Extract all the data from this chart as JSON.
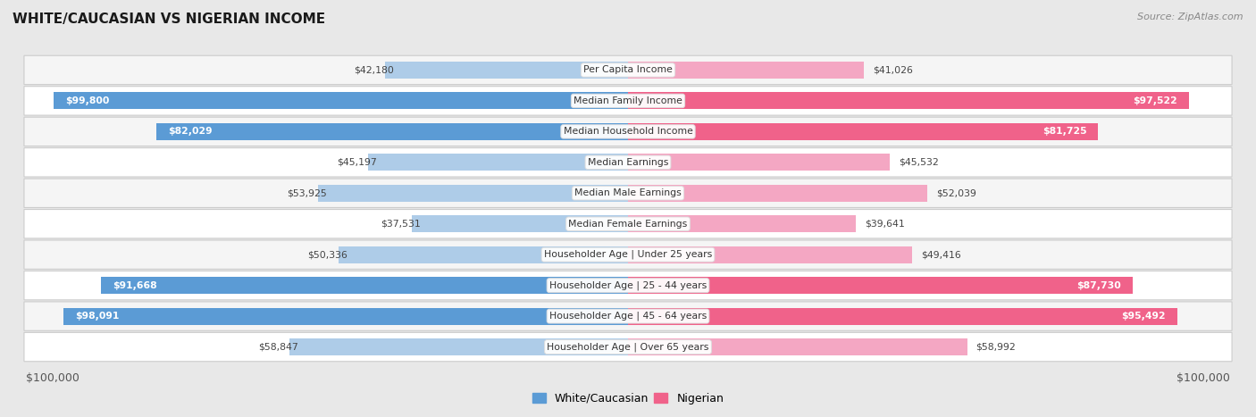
{
  "title": "WHITE/CAUCASIAN VS NIGERIAN INCOME",
  "source": "Source: ZipAtlas.com",
  "max_value": 100000,
  "categories": [
    "Per Capita Income",
    "Median Family Income",
    "Median Household Income",
    "Median Earnings",
    "Median Male Earnings",
    "Median Female Earnings",
    "Householder Age | Under 25 years",
    "Householder Age | 25 - 44 years",
    "Householder Age | 45 - 64 years",
    "Householder Age | Over 65 years"
  ],
  "white_values": [
    42180,
    99800,
    82029,
    45197,
    53925,
    37531,
    50336,
    91668,
    98091,
    58847
  ],
  "nigerian_values": [
    41026,
    97522,
    81725,
    45532,
    52039,
    39641,
    49416,
    87730,
    95492,
    58992
  ],
  "white_labels": [
    "$42,180",
    "$99,800",
    "$82,029",
    "$45,197",
    "$53,925",
    "$37,531",
    "$50,336",
    "$91,668",
    "$98,091",
    "$58,847"
  ],
  "nigerian_labels": [
    "$41,026",
    "$97,522",
    "$81,725",
    "$45,532",
    "$52,039",
    "$39,641",
    "$49,416",
    "$87,730",
    "$95,492",
    "$58,992"
  ],
  "white_color_strong": "#5b9bd5",
  "white_color_light": "#aecce8",
  "nigerian_color_strong": "#f0628a",
  "nigerian_color_light": "#f4a7c3",
  "background_color": "#e8e8e8",
  "row_bg_odd": "#f5f5f5",
  "row_bg_even": "#ffffff",
  "bar_height": 0.55,
  "label_threshold": 65000,
  "legend_white_color": "#5b9bd5",
  "legend_nigerian_color": "#f0628a",
  "xlabel_color": "#555555",
  "title_color": "#1a1a1a",
  "source_color": "#888888",
  "dark_label_color": "#444444",
  "white_label_text_color": "#ffffff"
}
